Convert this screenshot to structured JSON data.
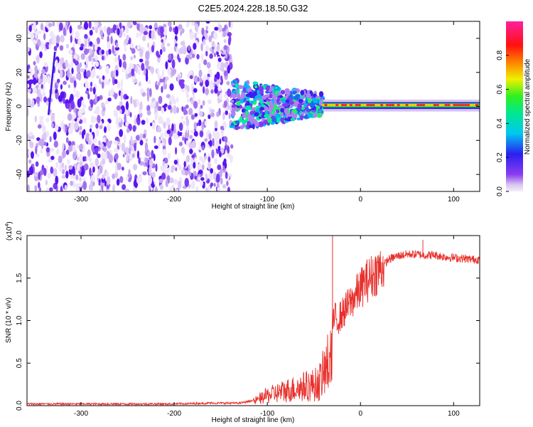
{
  "title": "C2E5.2024.228.18.50.G32",
  "chart_data": [
    {
      "type": "heatmap",
      "name": "spectrogram",
      "xlabel": "Height of straight line (km)",
      "ylabel": "Frequency (Hz)",
      "xlim": [
        -358,
        128
      ],
      "ylim": [
        -50,
        50
      ],
      "xticks": [
        -300,
        -200,
        -100,
        0,
        100
      ],
      "yticks": [
        -40,
        -20,
        0,
        20,
        40
      ],
      "xtick_labels": [
        "-300",
        "-200",
        "-100",
        "0",
        "100"
      ],
      "ytick_labels": [
        "-40",
        "-20",
        "0",
        "20",
        "40"
      ],
      "colorbar": {
        "label": "Normalized spectral amplitude",
        "range": [
          0,
          1
        ],
        "ticks": [
          0.0,
          0.2,
          0.4,
          0.6,
          0.8
        ],
        "tick_labels": [
          "0.0",
          "0.2",
          "0.4",
          "0.6",
          "0.8"
        ],
        "colormap": "rainbow (white-lavender-violet-blue-cyan-green-yellow-red-magenta)"
      },
      "regions": [
        {
          "x_range": [
            -358,
            -138
          ],
          "freq_range": [
            -50,
            50
          ],
          "amplitude": "low (0.0-0.2), diffuse noise"
        },
        {
          "x_range": [
            -138,
            -40
          ],
          "center_freq": 1,
          "spread_hz": [
            -15,
            15
          ],
          "amplitude": "0.2-0.5 scattered peaks"
        },
        {
          "x_range": [
            -40,
            128
          ],
          "center_freq": 1,
          "spread_hz": [
            -2,
            2
          ],
          "amplitude": "0.6-1.0 narrow carrier line"
        }
      ],
      "grid": false
    },
    {
      "type": "line",
      "name": "snr",
      "xlabel": "Height of straight line (km)",
      "ylabel": "SNR (10 * v/v)",
      "scale_label": "(x10",
      "scale_exp": "4",
      "scale_close": ")",
      "xlim": [
        -358,
        128
      ],
      "ylim": [
        0,
        2.0
      ],
      "xticks": [
        -300,
        -200,
        -100,
        0,
        100
      ],
      "yticks": [
        0.0,
        0.5,
        1.0,
        1.5,
        2.0
      ],
      "xtick_labels": [
        "-300",
        "-200",
        "-100",
        "0",
        "100"
      ],
      "ytick_labels": [
        "0.0",
        "0.5",
        "1.0",
        "1.5",
        "2.0"
      ],
      "color": "#e8302c",
      "series": [
        {
          "x": [
            -358,
            -300,
            -250,
            -200,
            -160,
            -130,
            -115,
            -100,
            -80,
            -60,
            -45,
            -35,
            -30,
            -28,
            -25,
            -15,
            -5,
            5,
            15,
            25,
            30,
            40,
            50,
            60,
            70,
            80,
            90,
            100,
            110,
            120,
            128
          ],
          "y": [
            0.02,
            0.02,
            0.02,
            0.02,
            0.03,
            0.03,
            0.06,
            0.15,
            0.22,
            0.28,
            0.32,
            0.6,
            0.9,
            1.05,
            1.0,
            1.15,
            1.3,
            1.45,
            1.55,
            1.65,
            1.72,
            1.76,
            1.78,
            1.78,
            1.77,
            1.77,
            1.75,
            1.74,
            1.73,
            1.72,
            1.72
          ]
        }
      ],
      "spikes": [
        {
          "x": -30,
          "y": 2.0
        },
        {
          "x": 67,
          "y": 1.95
        }
      ],
      "grid": false
    }
  ]
}
